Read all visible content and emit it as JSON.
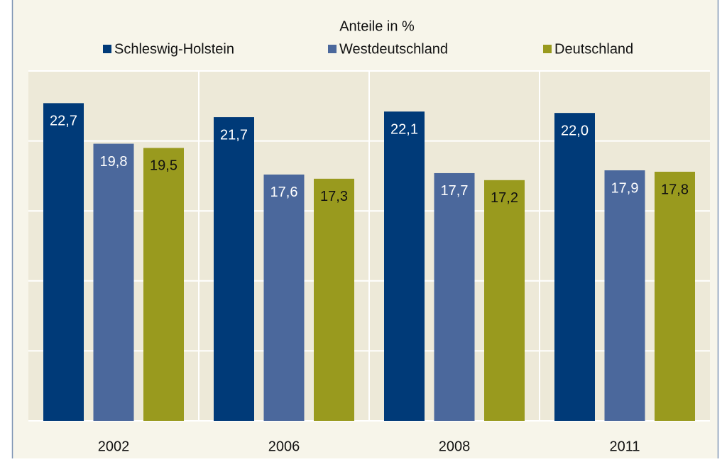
{
  "chart_data": {
    "type": "bar",
    "title": "Anteile in %",
    "categories": [
      "2002",
      "2006",
      "2008",
      "2011"
    ],
    "series": [
      {
        "name": "Schleswig-Holstein",
        "color": "#003a78",
        "label_color": "#ffffff",
        "values": [
          22.7,
          21.7,
          22.1,
          22.0
        ],
        "value_labels": [
          "22,7",
          "21,7",
          "22,1",
          "22,0"
        ]
      },
      {
        "name": "Westdeutschland",
        "color": "#4b689c",
        "label_color": "#ffffff",
        "values": [
          19.8,
          17.6,
          17.7,
          17.9
        ],
        "value_labels": [
          "19,8",
          "17,6",
          "17,7",
          "17,9"
        ]
      },
      {
        "name": "Deutschland",
        "color": "#999a1e",
        "label_color": "#111111",
        "values": [
          19.5,
          17.3,
          17.2,
          17.8
        ],
        "value_labels": [
          "19,5",
          "17,3",
          "17,2",
          "17,8"
        ]
      }
    ],
    "ylim": [
      0,
      25
    ],
    "yticks": [
      0,
      5,
      10,
      15,
      20,
      25
    ],
    "grid": true
  }
}
